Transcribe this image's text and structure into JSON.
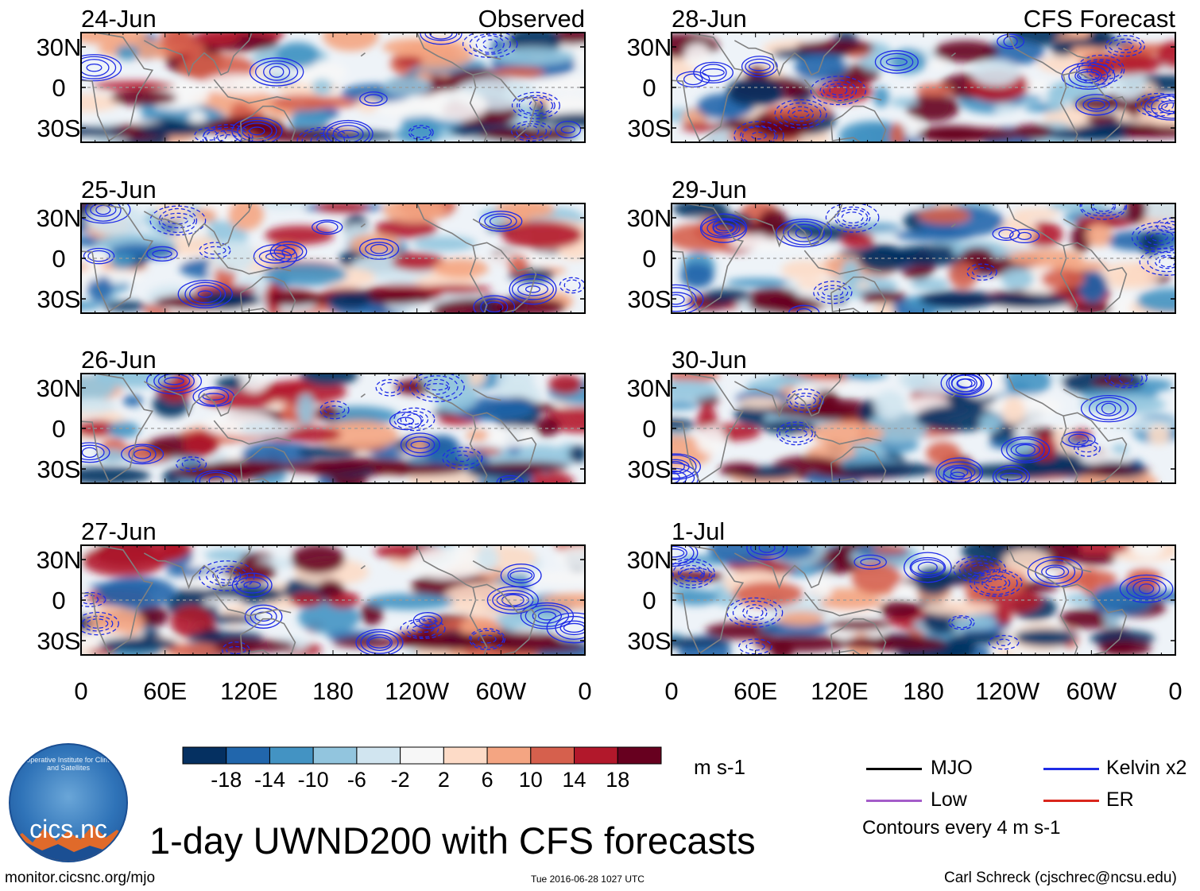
{
  "chart_data": {
    "type": "heatmap",
    "variable": "1-day UWND200 with CFS forecasts",
    "panel_sets": [
      {
        "label": "Observed",
        "dates": [
          "24-Jun",
          "25-Jun",
          "26-Jun",
          "27-Jun"
        ]
      },
      {
        "label": "CFS Forecast",
        "dates": [
          "28-Jun",
          "29-Jun",
          "30-Jun",
          "1-Jul"
        ]
      }
    ],
    "y_ticks": [
      "30N",
      "0",
      "30S"
    ],
    "x_ticks": [
      "0",
      "60E",
      "120E",
      "180",
      "120W",
      "60W",
      "0"
    ],
    "colorbar": {
      "units": "m s-1",
      "tick_labels": [
        "-18",
        "-14",
        "-10",
        "-6",
        "-2",
        "2",
        "6",
        "10",
        "14",
        "18"
      ],
      "colors": [
        "#053061",
        "#2166ac",
        "#4393c3",
        "#92c5de",
        "#d1e5f0",
        "#f7f7f7",
        "#fddbc7",
        "#f4a582",
        "#d6604d",
        "#b2182b",
        "#67001f"
      ]
    },
    "legend": [
      {
        "label": "MJO",
        "color": "#000000"
      },
      {
        "label": "Kelvin x2",
        "color": "#1f2ce6"
      },
      {
        "label": "Low",
        "color": "#a45cc9"
      },
      {
        "label": "ER",
        "color": "#d9261c"
      }
    ],
    "contour_note": "Contours every 4 m s-1"
  },
  "footer": {
    "title": "1-day UWND200 with CFS forecasts",
    "url": "monitor.cicsnc.org/mjo",
    "timestamp": "Tue 2016-06-28 1027 UTC",
    "author": "Carl Schreck (cjschrec@ncsu.edu)"
  },
  "logo": {
    "text": "cics.nc",
    "ring_text": "Cooperative Institute for Climate and Satellites"
  }
}
